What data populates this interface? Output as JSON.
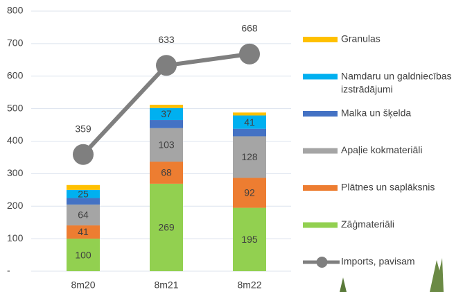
{
  "chart_data": {
    "type": "bar-line",
    "categories": [
      "8m20",
      "8m21",
      "8m22"
    ],
    "ylim": [
      0,
      800
    ],
    "yticks": [
      {
        "value": 0,
        "label": "-"
      },
      100,
      200,
      300,
      400,
      500,
      600,
      700,
      800
    ],
    "grid": true,
    "legend": "right",
    "series": [
      {
        "name": "Zāģmateriāli",
        "color": "#92d050",
        "values": [
          100,
          269,
          195
        ],
        "data_labels": true
      },
      {
        "name": "Plātnes un saplāksnis",
        "color": "#ed7d31",
        "values": [
          41,
          68,
          92
        ],
        "data_labels": true
      },
      {
        "name": "Apaļie kokmateriāli",
        "color": "#a5a5a5",
        "values": [
          64,
          103,
          128
        ],
        "data_labels": true
      },
      {
        "name": "Malka un šķelda",
        "color": "#4472c4",
        "values": [
          20,
          25,
          23
        ],
        "data_labels": false
      },
      {
        "name": "Namdaru un galdniecības izstrādājumi",
        "color": "#00b0f0",
        "values": [
          25,
          37,
          41
        ],
        "data_labels": true
      },
      {
        "name": "Granulas",
        "color": "#ffc000",
        "values": [
          15,
          10,
          9
        ],
        "data_labels": false
      },
      {
        "name": "Imports, pavisam",
        "color": "#7f7f7f",
        "values": [
          359,
          633,
          668
        ],
        "type": "line",
        "data_labels": true
      }
    ]
  }
}
